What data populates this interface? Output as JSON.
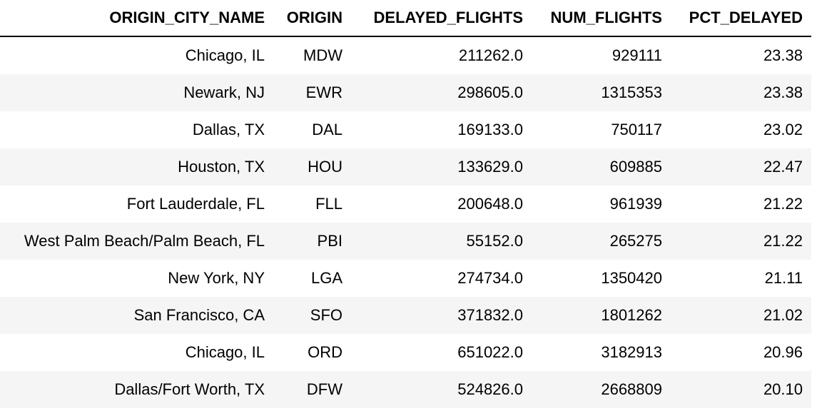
{
  "table": {
    "columns": [
      "ORIGIN_CITY_NAME",
      "ORIGIN",
      "DELAYED_FLIGHTS",
      "NUM_FLIGHTS",
      "PCT_DELAYED"
    ],
    "rows": [
      [
        "Chicago, IL",
        "MDW",
        "211262.0",
        "929111",
        "23.38"
      ],
      [
        "Newark, NJ",
        "EWR",
        "298605.0",
        "1315353",
        "23.38"
      ],
      [
        "Dallas, TX",
        "DAL",
        "169133.0",
        "750117",
        "23.02"
      ],
      [
        "Houston, TX",
        "HOU",
        "133629.0",
        "609885",
        "22.47"
      ],
      [
        "Fort Lauderdale, FL",
        "FLL",
        "200648.0",
        "961939",
        "21.22"
      ],
      [
        "West Palm Beach/Palm Beach, FL",
        "PBI",
        "55152.0",
        "265275",
        "21.22"
      ],
      [
        "New York, NY",
        "LGA",
        "274734.0",
        "1350420",
        "21.11"
      ],
      [
        "San Francisco, CA",
        "SFO",
        "371832.0",
        "1801262",
        "21.02"
      ],
      [
        "Chicago, IL",
        "ORD",
        "651022.0",
        "3182913",
        "20.96"
      ],
      [
        "Dallas/Fort Worth, TX",
        "DFW",
        "524826.0",
        "2668809",
        "20.10"
      ]
    ]
  }
}
